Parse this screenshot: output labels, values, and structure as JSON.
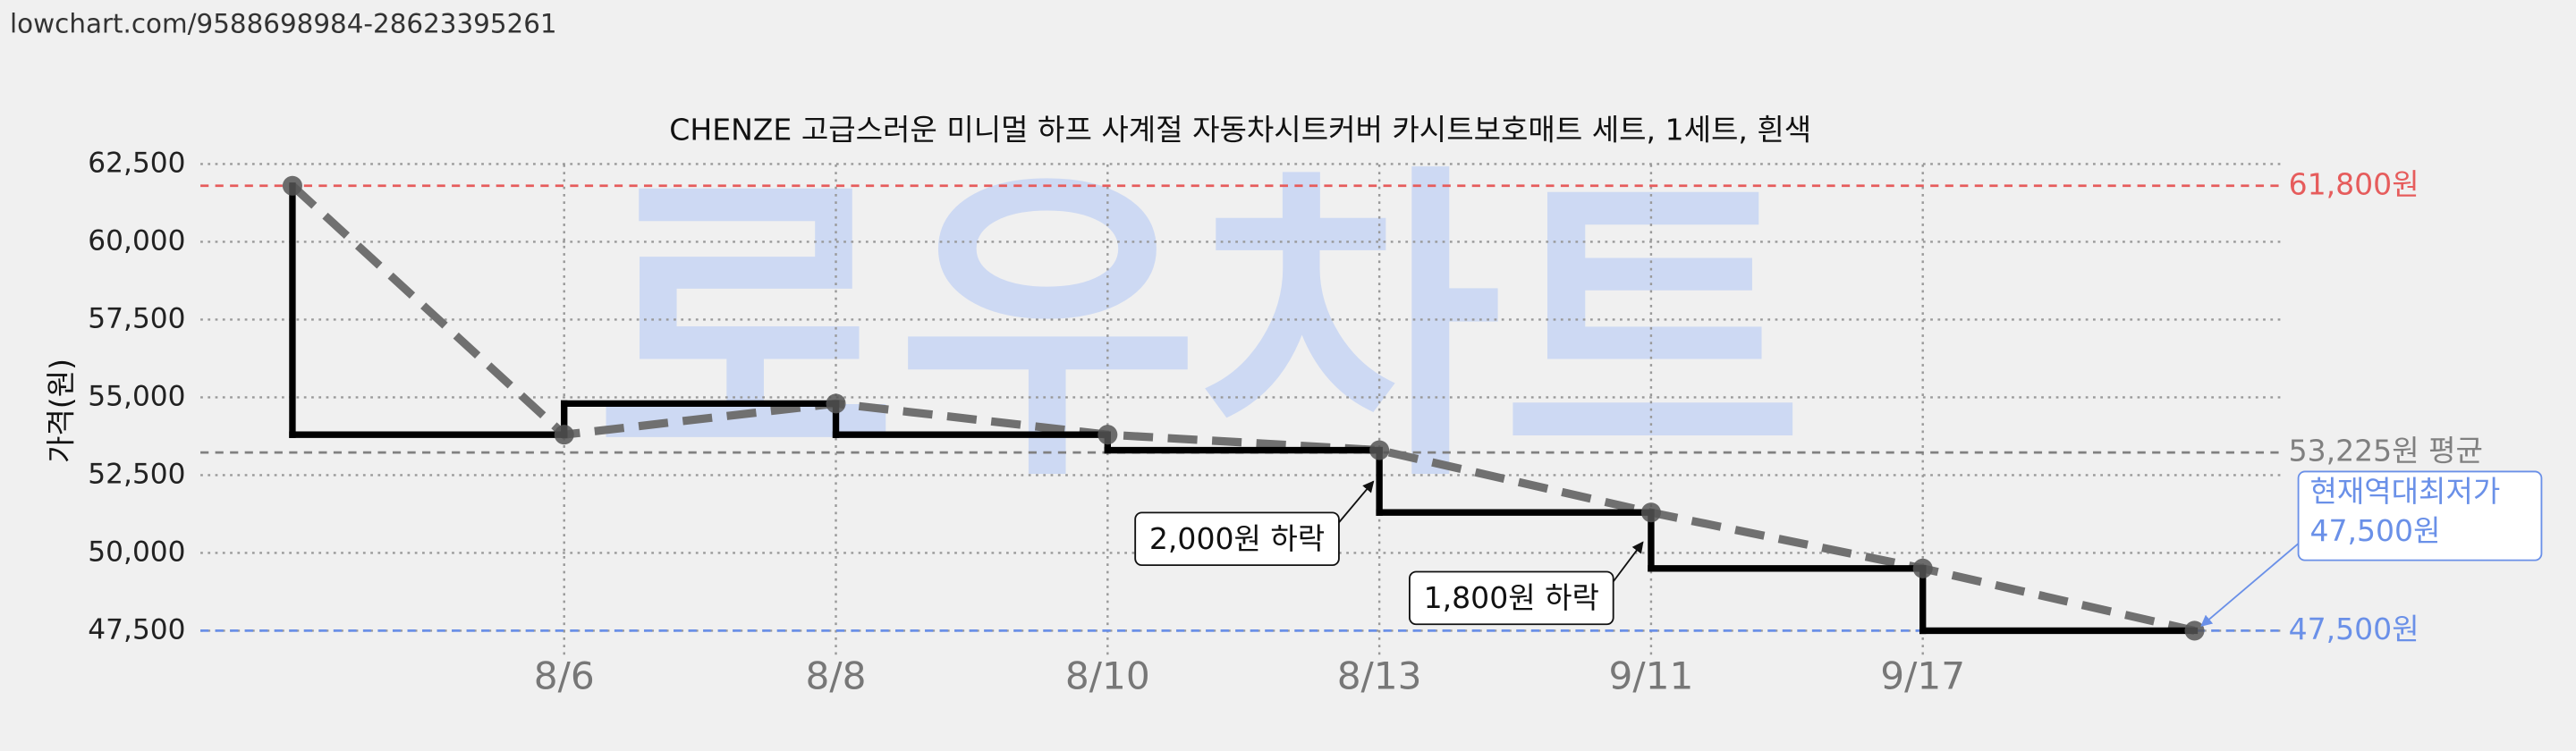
{
  "chart_data": {
    "type": "step-line",
    "url": "lowchart.com/9588698984-28623395261",
    "title": "CHENZE 고급스러운 미니멀 하프 사계절 자동차시트커버 카시트보호매트 세트, 1세트, 흰색",
    "watermark": "로우차트",
    "y_label": "가격(원)",
    "categories": [
      null,
      "8/6",
      "8/8",
      "8/10",
      "8/13",
      "9/11",
      "9/17",
      null
    ],
    "series": [
      {
        "color": "#000000",
        "values": [
          61800,
          53800,
          54800,
          53800,
          53300,
          51300,
          49500,
          47500
        ]
      }
    ],
    "trend_color": "#707070",
    "ylim": [
      46650,
      62800
    ],
    "yticks": [
      {
        "value": 47500,
        "label": "47,500"
      },
      {
        "value": 50000,
        "label": "50,000"
      },
      {
        "value": 52500,
        "label": "52,500"
      },
      {
        "value": 55000,
        "label": "55,000"
      },
      {
        "value": 57500,
        "label": "57,500"
      },
      {
        "value": 60000,
        "label": "60,000"
      },
      {
        "value": 62500,
        "label": "62,500"
      }
    ],
    "grid": true,
    "hlines": [
      {
        "value": 61800,
        "label": "61,800원",
        "color": "#e65c5c"
      },
      {
        "value": 53225,
        "label": "53,225원 평균",
        "color": "#808080"
      },
      {
        "value": 47500,
        "label": "47,500원",
        "color": "#6a90e8"
      }
    ],
    "annotations": [
      "2,000원 하락",
      "1,800원 하락"
    ],
    "lowest_label": [
      "현재역대최저가",
      "47,500원"
    ]
  }
}
